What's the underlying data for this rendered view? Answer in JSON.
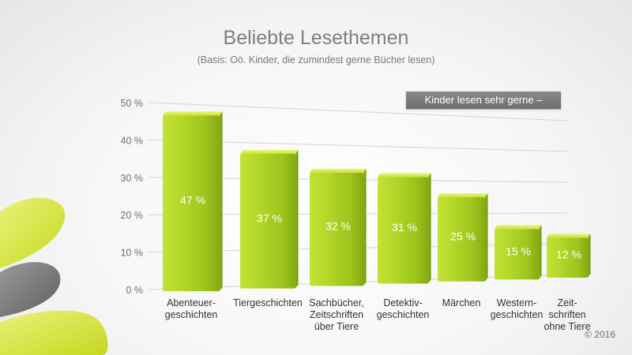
{
  "title": "Beliebte Lesethemen",
  "subtitle": "(Basis: Oö. Kinder, die zumindest gerne Bücher lesen)",
  "legend": "Kinder lesen sehr gerne  –",
  "copyright": "© 2016",
  "colors": {
    "bar_light": "#d6ef4e",
    "bar_main": "#a9cf22",
    "bar_dark": "#82a612",
    "grid": "#d3d3d3",
    "legend_bg": "#7a7a7a"
  },
  "chart_data": {
    "type": "bar",
    "title": "Beliebte Lesethemen",
    "subtitle": "(Basis: Oö. Kinder, die zumindest gerne Bücher lesen)",
    "ylim": [
      0,
      50
    ],
    "yticks": [
      0,
      10,
      20,
      30,
      40,
      50
    ],
    "ytick_labels": [
      "0  %",
      "10  %",
      "20  %",
      "30  %",
      "40  %",
      "50  %"
    ],
    "grid": true,
    "legend_position": "top-right",
    "categories": [
      [
        "Abenteuer-",
        "geschichten"
      ],
      [
        "Tiergeschichten"
      ],
      [
        "Sachbücher,",
        "Zeitschriften",
        "über Tiere"
      ],
      [
        "Detektiv-",
        "geschichten"
      ],
      [
        "Märchen"
      ],
      [
        "Western-",
        "geschichten"
      ],
      [
        "Zeit-",
        "schriften",
        "ohne Tiere"
      ]
    ],
    "series": [
      {
        "name": "Kinder lesen sehr gerne",
        "values": [
          47,
          37,
          32,
          31,
          25,
          15,
          12
        ],
        "labels": [
          "47  %",
          "37  %",
          "32  %",
          "31  %",
          "25  %",
          "15  %",
          "12  %"
        ]
      }
    ]
  }
}
